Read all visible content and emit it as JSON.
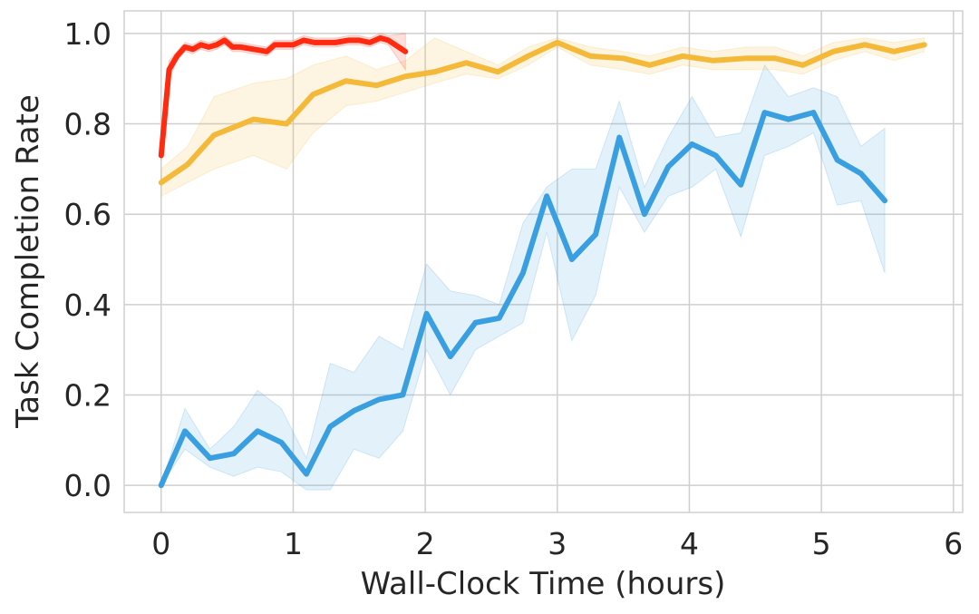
{
  "chart_data": {
    "type": "line",
    "xlabel": "Wall-Clock Time (hours)",
    "ylabel": "Task Completion Rate",
    "xlim": [
      -0.28,
      6.07
    ],
    "ylim": [
      -0.06,
      1.05
    ],
    "xticks": [
      0,
      1,
      2,
      3,
      4,
      5,
      6
    ],
    "yticks": [
      {
        "value": 0,
        "label": "0.0"
      },
      0.2,
      0.4,
      0.6,
      0.8,
      {
        "value": 1,
        "label": "1.0"
      }
    ],
    "grid": true,
    "series": [
      {
        "color": "#3a9fe0",
        "x": [
          0,
          0.18,
          0.37,
          0.55,
          0.73,
          0.91,
          1.1,
          1.28,
          1.46,
          1.65,
          1.83,
          2.01,
          2.19,
          2.38,
          2.56,
          2.74,
          2.92,
          3.11,
          3.29,
          3.47,
          3.66,
          3.84,
          4.02,
          4.2,
          4.39,
          4.57,
          4.75,
          4.94,
          5.12,
          5.3,
          5.48
        ],
        "values": [
          0,
          0.12,
          0.06,
          0.07,
          0.12,
          0.095,
          0.025,
          0.13,
          0.165,
          0.19,
          0.2,
          0.38,
          0.285,
          0.36,
          0.37,
          0.47,
          0.64,
          0.5,
          0.555,
          0.77,
          0.6,
          0.705,
          0.755,
          0.73,
          0.665,
          0.825,
          0.81,
          0.825,
          0.72,
          0.69,
          0.63
        ],
        "lower": [
          0,
          0.08,
          0.04,
          0.02,
          0.04,
          0.03,
          -0.01,
          -0.01,
          0.08,
          0.06,
          0.12,
          0.3,
          0.2,
          0.3,
          0.33,
          0.36,
          0.56,
          0.32,
          0.42,
          0.66,
          0.56,
          0.64,
          0.66,
          0.7,
          0.55,
          0.73,
          0.75,
          0.78,
          0.62,
          0.63,
          0.47
        ],
        "upper": [
          0,
          0.17,
          0.08,
          0.13,
          0.21,
          0.17,
          0.06,
          0.27,
          0.25,
          0.33,
          0.3,
          0.49,
          0.43,
          0.42,
          0.4,
          0.58,
          0.66,
          0.7,
          0.7,
          0.85,
          0.66,
          0.77,
          0.86,
          0.77,
          0.78,
          0.93,
          0.86,
          0.88,
          0.86,
          0.75,
          0.79
        ]
      },
      {
        "color": "#f4b938",
        "x": [
          0,
          0.2,
          0.4,
          0.7,
          0.95,
          1.15,
          1.4,
          1.63,
          1.85,
          2.07,
          2.31,
          2.55,
          2.78,
          3.0,
          3.25,
          3.5,
          3.7,
          3.95,
          4.18,
          4.43,
          4.65,
          4.86,
          5.09,
          5.33,
          5.55,
          5.78
        ],
        "values": [
          0.67,
          0.71,
          0.775,
          0.81,
          0.8,
          0.865,
          0.895,
          0.885,
          0.905,
          0.915,
          0.935,
          0.915,
          0.95,
          0.98,
          0.95,
          0.945,
          0.93,
          0.95,
          0.94,
          0.945,
          0.945,
          0.93,
          0.96,
          0.975,
          0.96,
          0.975
        ],
        "lower": [
          0.64,
          0.67,
          0.7,
          0.73,
          0.7,
          0.78,
          0.84,
          0.85,
          0.87,
          0.89,
          0.91,
          0.9,
          0.93,
          0.97,
          0.93,
          0.92,
          0.91,
          0.93,
          0.92,
          0.92,
          0.92,
          0.91,
          0.94,
          0.96,
          0.94,
          0.96
        ],
        "upper": [
          0.7,
          0.75,
          0.86,
          0.89,
          0.9,
          0.93,
          0.95,
          0.92,
          0.94,
          0.99,
          0.96,
          0.93,
          0.97,
          0.99,
          0.97,
          0.96,
          0.95,
          0.97,
          0.96,
          0.97,
          0.97,
          0.95,
          0.98,
          0.99,
          0.98,
          0.99
        ]
      },
      {
        "color": "#ff2a10",
        "x": [
          0,
          0.06,
          0.12,
          0.18,
          0.24,
          0.3,
          0.36,
          0.42,
          0.48,
          0.54,
          0.6,
          0.7,
          0.8,
          0.86,
          0.92,
          1.0,
          1.08,
          1.16,
          1.24,
          1.32,
          1.42,
          1.5,
          1.58,
          1.66,
          1.72,
          1.85
        ],
        "values": [
          0.73,
          0.92,
          0.95,
          0.97,
          0.965,
          0.975,
          0.97,
          0.975,
          0.985,
          0.97,
          0.97,
          0.965,
          0.96,
          0.975,
          0.975,
          0.975,
          0.985,
          0.98,
          0.98,
          0.98,
          0.985,
          0.985,
          0.98,
          0.99,
          0.985,
          0.96
        ],
        "lower": [
          0.72,
          0.9,
          0.94,
          0.96,
          0.955,
          0.965,
          0.96,
          0.965,
          0.975,
          0.96,
          0.96,
          0.955,
          0.95,
          0.965,
          0.965,
          0.965,
          0.975,
          0.97,
          0.97,
          0.97,
          0.975,
          0.975,
          0.97,
          0.98,
          0.975,
          0.92
        ],
        "upper": [
          0.74,
          0.94,
          0.96,
          0.98,
          0.975,
          0.985,
          0.98,
          0.985,
          0.995,
          0.98,
          0.98,
          0.975,
          0.97,
          0.985,
          0.985,
          0.985,
          0.995,
          0.99,
          0.99,
          0.99,
          0.995,
          0.995,
          0.99,
          1.0,
          0.995,
          1.0
        ]
      }
    ]
  }
}
